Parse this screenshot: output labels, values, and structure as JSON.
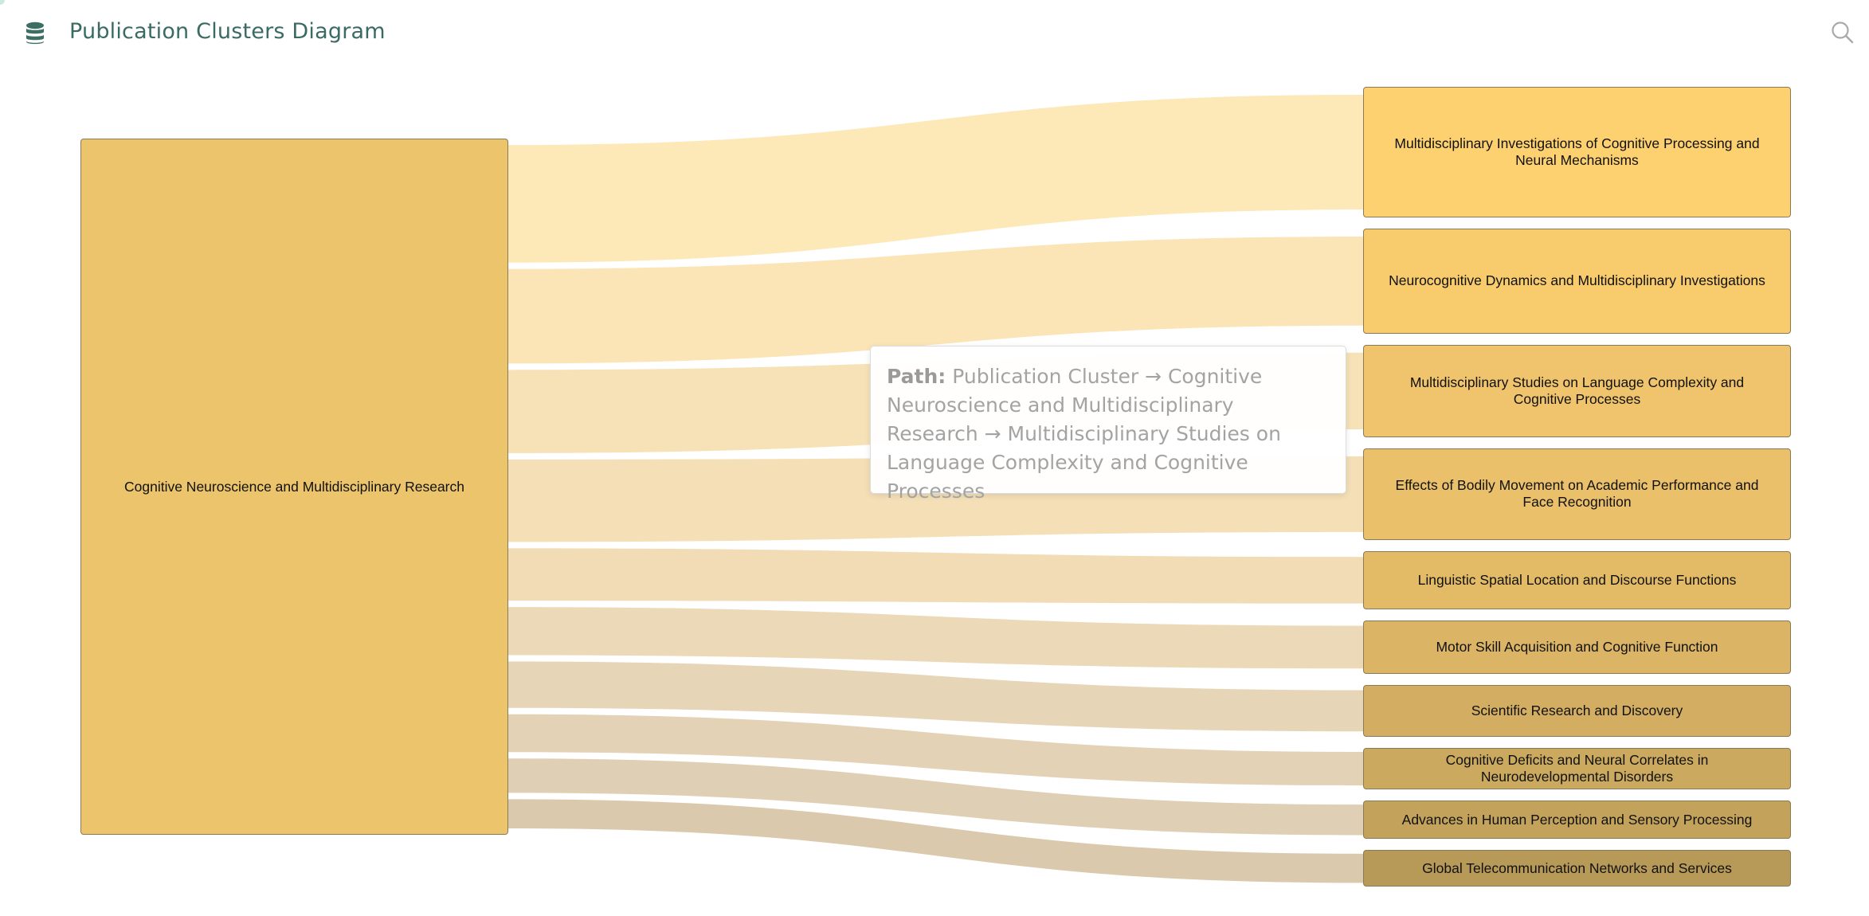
{
  "header": {
    "title": "Publication Clusters Diagram",
    "icon": "database-icon",
    "search_icon": "search-icon"
  },
  "chart_data": {
    "type": "sankey",
    "source": {
      "label": "Cognitive Neuroscience and Multidisciplinary Research",
      "color": "#ebc46b"
    },
    "targets": [
      {
        "label": "Multidisciplinary Investigations of Cognitive Processing and Neural Mechanisms",
        "value": 137,
        "color": "#fdd170",
        "link_color": "#fde8b8"
      },
      {
        "label": "Neurocognitive Dynamics and Multidisciplinary Investigations",
        "value": 110,
        "color": "#f8cb6c",
        "link_color": "#fbe5b7"
      },
      {
        "label": "Multidisciplinary Studies on Language Complexity and Cognitive Processes",
        "value": 97,
        "color": "#f0c46c",
        "link_color": "#f7e2b8"
      },
      {
        "label": "Effects of Bodily Movement on Academic Performance and Face Recognition",
        "value": 96,
        "color": "#eac06a",
        "link_color": "#f4dfb7"
      },
      {
        "label": "Linguistic Spatial Location and Discourse Functions",
        "value": 61,
        "color": "#e3bb67",
        "link_color": "#f1dcb6"
      },
      {
        "label": "Motor Skill Acquisition and Cognitive Function",
        "value": 56,
        "color": "#dbb565",
        "link_color": "#ecd9b7"
      },
      {
        "label": "Scientific Research and Discovery",
        "value": 54,
        "color": "#d3ae62",
        "link_color": "#e7d5b8"
      },
      {
        "label": "Cognitive Deficits and Neural Correlates in Neurodevelopmental Disorders",
        "value": 44,
        "color": "#cba95e",
        "link_color": "#e3d2b6"
      },
      {
        "label": "Advances in Human Perception and Sensory Processing",
        "value": 40,
        "color": "#c3a35c",
        "link_color": "#dfcfb4"
      },
      {
        "label": "Global Telecommunication Networks and Services",
        "value": 34,
        "color": "#b89a58",
        "link_color": "#dac9ad"
      }
    ]
  },
  "tooltip": {
    "label": "Path:",
    "text": "Publication Cluster → Cognitive Neuroscience and Multidisciplinary Research → Multidisciplinary Studies on Language Complexity and Cognitive Processes"
  }
}
